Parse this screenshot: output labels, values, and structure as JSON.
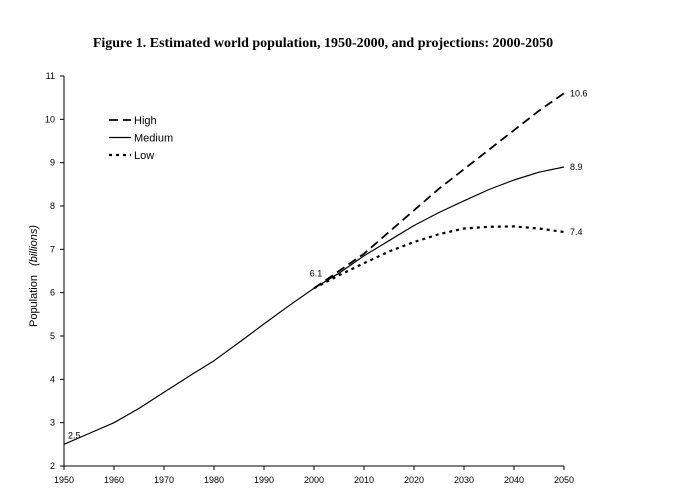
{
  "chart_data": {
    "type": "line",
    "title": "Figure 1. Estimated world population, 1950-2000, and projections: 2000-2050",
    "xlabel": "",
    "ylabel": "Population",
    "ylabel_unit": "(billions)",
    "xlim": [
      1950,
      2050
    ],
    "ylim": [
      2,
      11
    ],
    "x_ticks": [
      1950,
      1960,
      1970,
      1980,
      1990,
      2000,
      2010,
      2020,
      2030,
      2040,
      2050
    ],
    "y_ticks": [
      2,
      3,
      4,
      5,
      6,
      7,
      8,
      9,
      10,
      11
    ],
    "grid": false,
    "legend_position": "top-left",
    "series": [
      {
        "name": "High",
        "style": "dashed",
        "x": [
          2000,
          2005,
          2010,
          2015,
          2020,
          2025,
          2030,
          2035,
          2040,
          2045,
          2050
        ],
        "y": [
          6.1,
          6.5,
          6.9,
          7.4,
          7.9,
          8.4,
          8.85,
          9.3,
          9.75,
          10.2,
          10.6
        ]
      },
      {
        "name": "Medium",
        "style": "solid",
        "x": [
          1950,
          1955,
          1960,
          1965,
          1970,
          1975,
          1980,
          1985,
          1990,
          1995,
          2000,
          2005,
          2010,
          2015,
          2020,
          2025,
          2030,
          2035,
          2040,
          2045,
          2050
        ],
        "y": [
          2.5,
          2.75,
          3.0,
          3.33,
          3.7,
          4.07,
          4.43,
          4.85,
          5.28,
          5.7,
          6.1,
          6.45,
          6.85,
          7.2,
          7.55,
          7.85,
          8.12,
          8.38,
          8.6,
          8.78,
          8.9
        ]
      },
      {
        "name": "Low",
        "style": "dotted",
        "x": [
          2000,
          2005,
          2010,
          2015,
          2020,
          2025,
          2030,
          2035,
          2040,
          2045,
          2050
        ],
        "y": [
          6.1,
          6.4,
          6.68,
          6.95,
          7.17,
          7.35,
          7.48,
          7.52,
          7.53,
          7.48,
          7.4
        ]
      }
    ],
    "annotations": [
      {
        "text": "2.5",
        "x": 1950,
        "y": 2.5
      },
      {
        "text": "6.1",
        "x": 2000,
        "y": 6.1
      },
      {
        "text": "10.6",
        "x": 2050,
        "y": 10.6
      },
      {
        "text": "8.9",
        "x": 2050,
        "y": 8.9
      },
      {
        "text": "7.4",
        "x": 2050,
        "y": 7.4
      }
    ]
  }
}
